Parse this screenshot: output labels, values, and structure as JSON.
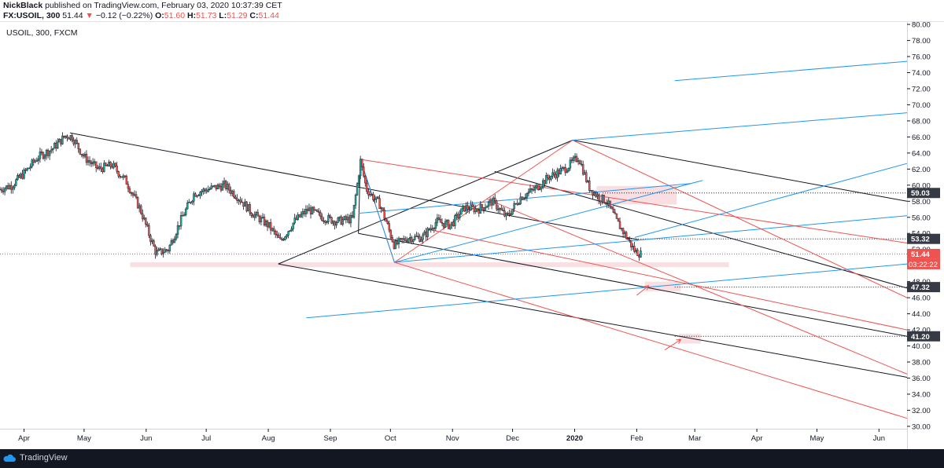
{
  "header": {
    "author": "NickBlack",
    "published_text": " published on TradingView.com, February 03, 2020 10:37:39 CET",
    "symbol_line": "FX:USOIL, 300",
    "change_arrow": "▼",
    "change_text": "−0.12 (−0.22%)",
    "o_label": "O:",
    "o_value": "51.60",
    "h_label": "H:",
    "h_value": "51.73",
    "l_label": "L:",
    "l_value": "51.29",
    "c_label": "C:",
    "c_value": "51.44",
    "last_value": "51.44"
  },
  "legend": {
    "text": "USOIL, 300, FXCM"
  },
  "footer": {
    "brand": "TradingView"
  },
  "colors": {
    "candle_up": "#26a69a",
    "candle_down": "#ef5350",
    "candle_body": "#131722",
    "trend_black": "#131722",
    "trend_red": "#ef5350",
    "trend_blue": "#2196f3",
    "price_line": "#ef5350",
    "zone": "#f8d7da",
    "axis_text": "#131722",
    "footer_bg": "#131722"
  },
  "chart_data": {
    "type": "line",
    "title": "USOIL, 300, FXCM",
    "xlabel": "",
    "ylabel": "",
    "x_tick_labels": [
      "Apr",
      "May",
      "Jun",
      "Jul",
      "Aug",
      "Sep",
      "Oct",
      "Nov",
      "Dec",
      "2020",
      "Feb",
      "Mar",
      "Apr",
      "May",
      "Jun"
    ],
    "x_tick_dates": [
      "2019-04-01",
      "2019-05-01",
      "2019-06-01",
      "2019-07-01",
      "2019-08-01",
      "2019-09-01",
      "2019-10-01",
      "2019-11-01",
      "2019-12-01",
      "2020-01-01",
      "2020-02-01",
      "2020-03-01",
      "2020-04-01",
      "2020-05-01",
      "2020-06-01"
    ],
    "x_range": [
      "2019-03-20",
      "2020-06-15"
    ],
    "y_tick_labels": [
      "30.00",
      "32.00",
      "34.00",
      "36.00",
      "38.00",
      "40.00",
      "42.00",
      "44.00",
      "46.00",
      "48.00",
      "50.00",
      "52.00",
      "54.00",
      "56.00",
      "58.00",
      "60.00",
      "62.00",
      "64.00",
      "66.00",
      "68.00",
      "70.00",
      "72.00",
      "74.00",
      "76.00",
      "78.00",
      "80.00"
    ],
    "ylim": [
      29.7,
      80.3
    ],
    "price_series": {
      "name": "USOIL",
      "x": [
        "2019-03-20",
        "2019-03-26",
        "2019-04-01",
        "2019-04-08",
        "2019-04-15",
        "2019-04-22",
        "2019-04-25",
        "2019-05-01",
        "2019-05-08",
        "2019-05-15",
        "2019-05-22",
        "2019-05-29",
        "2019-06-03",
        "2019-06-06",
        "2019-06-12",
        "2019-06-18",
        "2019-06-25",
        "2019-07-02",
        "2019-07-10",
        "2019-07-17",
        "2019-07-24",
        "2019-08-01",
        "2019-08-07",
        "2019-08-14",
        "2019-08-21",
        "2019-08-28",
        "2019-09-04",
        "2019-09-12",
        "2019-09-16",
        "2019-09-19",
        "2019-09-26",
        "2019-10-03",
        "2019-10-10",
        "2019-10-17",
        "2019-10-24",
        "2019-10-31",
        "2019-11-07",
        "2019-11-14",
        "2019-11-21",
        "2019-11-28",
        "2019-12-05",
        "2019-12-12",
        "2019-12-19",
        "2019-12-27",
        "2020-01-03",
        "2020-01-08",
        "2020-01-13",
        "2020-01-17",
        "2020-01-22",
        "2020-01-27",
        "2020-01-31",
        "2020-02-03"
      ],
      "y": [
        59.5,
        60.0,
        61.5,
        63.5,
        64.5,
        66.2,
        66.0,
        63.5,
        62.0,
        62.5,
        60.5,
        57.0,
        53.5,
        51.5,
        52.0,
        55.5,
        59.0,
        59.5,
        60.0,
        58.5,
        56.5,
        55.0,
        53.0,
        55.5,
        57.0,
        56.0,
        55.5,
        55.8,
        63.0,
        59.5,
        57.5,
        52.5,
        53.5,
        53.5,
        55.5,
        55.0,
        57.2,
        57.0,
        58.0,
        56.0,
        58.5,
        59.5,
        61.0,
        62.0,
        63.5,
        59.8,
        58.5,
        58.0,
        55.5,
        53.5,
        51.8,
        51.44
      ]
    },
    "current_price": 51.44,
    "countdown_label": "03:22:22",
    "price_labels": [
      {
        "value": 59.03,
        "label": "59.03",
        "color": "#363a45"
      },
      {
        "value": 53.32,
        "label": "53.32",
        "color": "#363a45"
      },
      {
        "value": 51.44,
        "label": "51.44",
        "color": "#ef5350"
      },
      {
        "value": 47.32,
        "label": "47.32",
        "color": "#363a45"
      },
      {
        "value": 41.2,
        "label": "41.20",
        "color": "#363a45"
      }
    ],
    "horizontal_levels": [
      {
        "value": 59.03,
        "from": "2020-01-15",
        "to": "2020-06-15"
      },
      {
        "value": 53.32,
        "from": "2020-01-28",
        "to": "2020-06-15"
      },
      {
        "value": 47.32,
        "from": "2020-02-20",
        "to": "2020-06-15"
      },
      {
        "value": 41.2,
        "from": "2020-02-20",
        "to": "2020-06-15"
      }
    ],
    "zones": [
      {
        "from": "2019-05-24",
        "to": "2020-03-18",
        "y_top": 50.4,
        "y_bottom": 49.8
      },
      {
        "from": "2020-01-12",
        "to": "2020-02-21",
        "y_top": 59.9,
        "y_bottom": 57.6
      },
      {
        "from": "2020-02-05",
        "to": "2020-02-23",
        "y_top": 48.0,
        "y_bottom": 46.8
      },
      {
        "from": "2020-02-22",
        "to": "2020-03-04",
        "y_top": 41.5,
        "y_bottom": 40.3
      }
    ],
    "arrows": [
      {
        "x1": "2020-02-01",
        "y1": 46.3,
        "x2": "2020-02-07",
        "y2": 47.5
      },
      {
        "x1": "2020-02-15",
        "y1": 39.5,
        "x2": "2020-02-23",
        "y2": 40.8
      }
    ],
    "trendlines": [
      {
        "color": "black",
        "x1": "2019-04-24",
        "y1": 66.5,
        "x2": "2020-02-02",
        "y2": 53.2
      },
      {
        "color": "black",
        "x1": "2019-08-06",
        "y1": 50.2,
        "x2": "2020-06-15",
        "y2": 36.1
      },
      {
        "color": "black",
        "x1": "2019-08-06",
        "y1": 50.2,
        "x2": "2019-12-31",
        "y2": 65.6
      },
      {
        "color": "black",
        "x1": "2019-12-31",
        "y1": 65.6,
        "x2": "2020-06-15",
        "y2": 58.0
      },
      {
        "color": "black",
        "x1": "2019-11-22",
        "y1": 61.7,
        "x2": "2020-06-15",
        "y2": 47.2
      },
      {
        "color": "black",
        "x1": "2019-09-15",
        "y1": 54.0,
        "x2": "2020-06-15",
        "y2": 41.2
      },
      {
        "color": "black",
        "x1": "2019-09-15",
        "y1": 54.0,
        "x2": "2019-09-16",
        "y2": 63.2
      },
      {
        "color": "red",
        "x1": "2019-09-16",
        "y1": 63.2,
        "x2": "2020-06-15",
        "y2": 52.8
      },
      {
        "color": "red",
        "x1": "2019-09-16",
        "y1": 63.2,
        "x2": "2019-10-03",
        "y2": 50.4
      },
      {
        "color": "red",
        "x1": "2019-10-03",
        "y1": 50.4,
        "x2": "2020-06-15",
        "y2": 31.0
      },
      {
        "color": "red",
        "x1": "2019-10-03",
        "y1": 50.4,
        "x2": "2019-12-31",
        "y2": 65.6
      },
      {
        "color": "red",
        "x1": "2019-12-31",
        "y1": 65.6,
        "x2": "2020-06-15",
        "y2": 46.0
      },
      {
        "color": "red",
        "x1": "2019-11-18",
        "y1": 58.3,
        "x2": "2020-06-15",
        "y2": 36.5
      },
      {
        "color": "red",
        "x1": "2019-10-20",
        "y1": 54.5,
        "x2": "2020-06-15",
        "y2": 42.0
      },
      {
        "color": "blue",
        "x1": "2019-09-15",
        "y1": 56.5,
        "x2": "2020-02-28",
        "y2": 60.2
      },
      {
        "color": "blue",
        "x1": "2019-09-16",
        "y1": 63.2,
        "x2": "2019-10-03",
        "y2": 50.4
      },
      {
        "color": "blue",
        "x1": "2019-10-03",
        "y1": 50.4,
        "x2": "2020-06-15",
        "y2": 56.2
      },
      {
        "color": "blue",
        "x1": "2019-10-03",
        "y1": 50.4,
        "x2": "2020-03-05",
        "y2": 60.6
      },
      {
        "color": "blue",
        "x1": "2019-12-31",
        "y1": 65.6,
        "x2": "2020-06-15",
        "y2": 69.0
      },
      {
        "color": "blue",
        "x1": "2020-01-31",
        "y1": 53.5,
        "x2": "2020-06-15",
        "y2": 62.7
      },
      {
        "color": "blue",
        "x1": "2020-02-20",
        "y1": 73.0,
        "x2": "2020-06-15",
        "y2": 75.4
      },
      {
        "color": "blue",
        "x1": "2019-08-20",
        "y1": 43.5,
        "x2": "2020-06-15",
        "y2": 50.2
      }
    ],
    "grid": false,
    "legend": "top-left"
  }
}
